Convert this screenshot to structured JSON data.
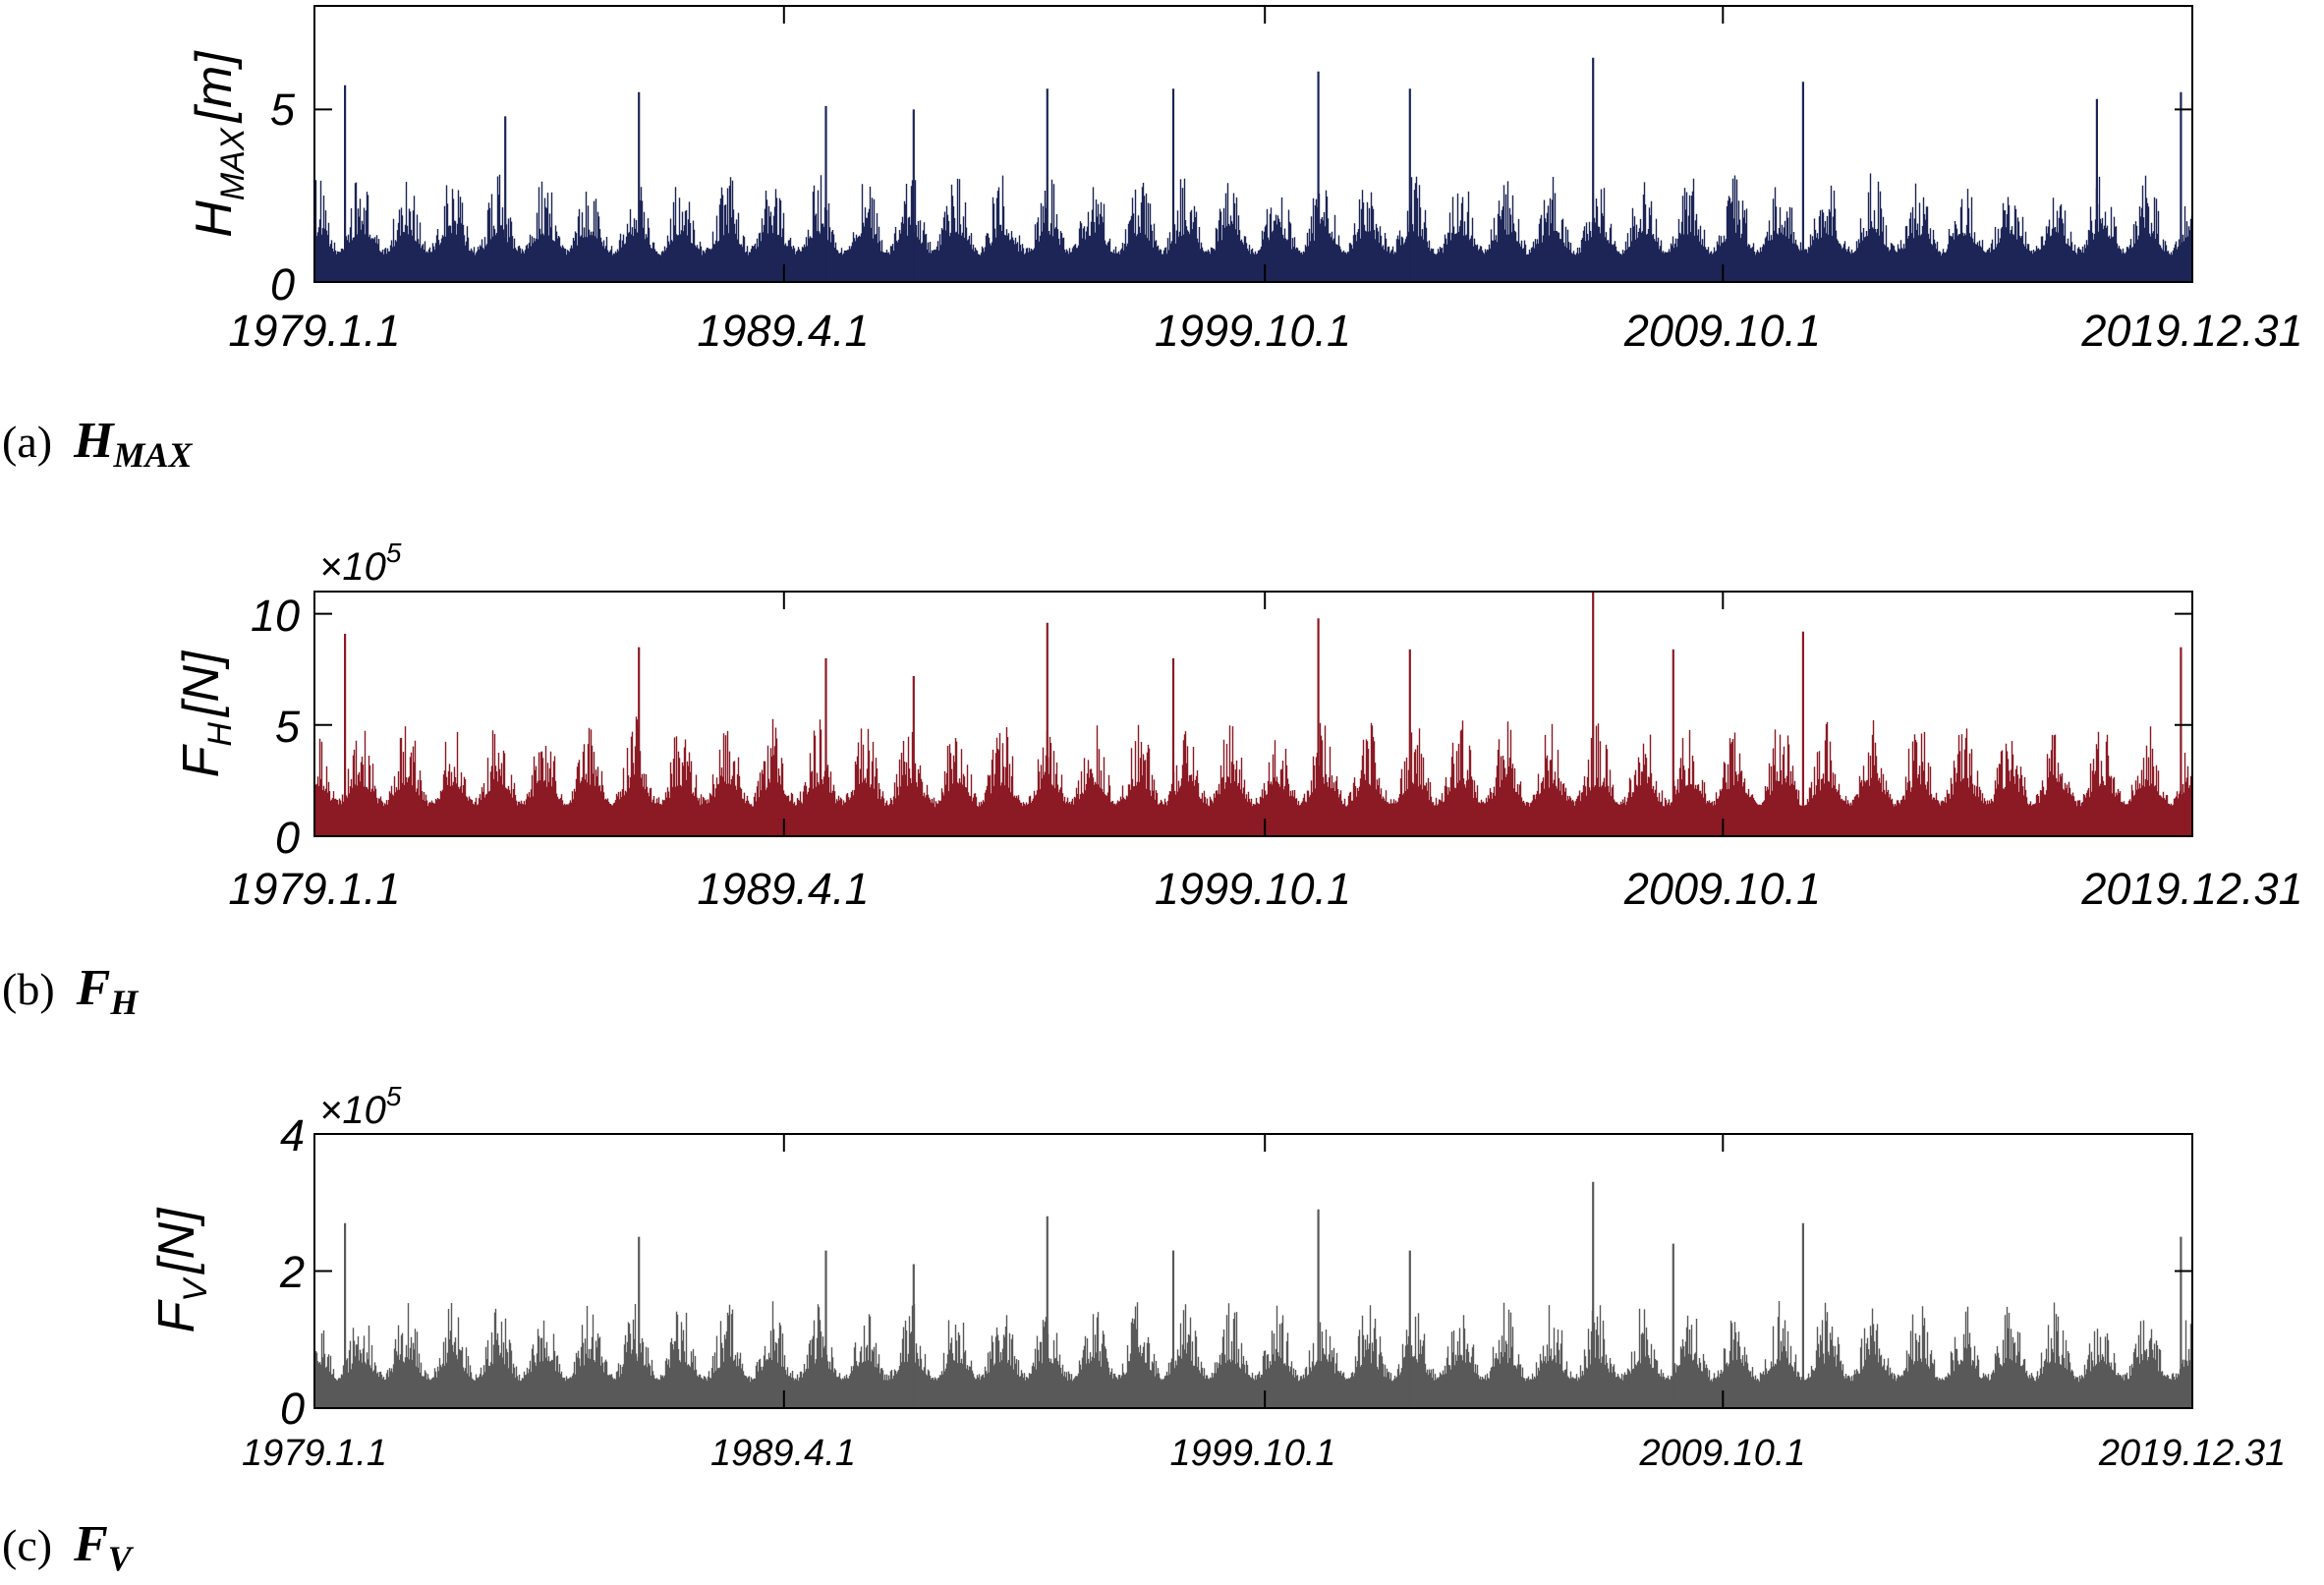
{
  "chart_data": [
    {
      "type": "bar",
      "ylabel": "H",
      "ylabel_subscript": "MAX",
      "ylabel_unit": "[m]",
      "yticks": [
        0,
        5
      ],
      "ylim": [
        0,
        8
      ],
      "x_tick_labels": [
        "1979.1.1",
        "1989.4.1",
        "1999.10.1",
        "2009.10.1",
        "2019.12.31"
      ],
      "x_range": [
        "1979.1.1",
        "2019.12.31"
      ],
      "series": [
        {
          "color": "#1c2556",
          "baseline": 0.7,
          "typical_peak": 2.5,
          "annual_peaks": [
            {
              "date": "1979.9",
              "value": 5.7
            },
            {
              "date": "1983.3",
              "value": 4.8
            },
            {
              "date": "1986.2",
              "value": 5.5
            },
            {
              "date": "1990.3",
              "value": 5.1
            },
            {
              "date": "1992.2",
              "value": 5.0
            },
            {
              "date": "1995.1",
              "value": 5.6
            },
            {
              "date": "1997.10",
              "value": 5.6
            },
            {
              "date": "2000.12",
              "value": 6.1
            },
            {
              "date": "2002.12",
              "value": 5.6
            },
            {
              "date": "2006.12",
              "value": 6.5
            },
            {
              "date": "2011.7",
              "value": 5.8
            },
            {
              "date": "2017.12",
              "value": 5.3
            },
            {
              "date": "2019.10",
              "value": 5.5
            }
          ]
        }
      ],
      "caption_label": "(a)",
      "caption_symbol": "H",
      "caption_subscript": "MAX"
    },
    {
      "type": "bar",
      "ylabel": "F",
      "ylabel_subscript": "H",
      "ylabel_unit": "[N]",
      "y_multiplier_base": "×10",
      "y_multiplier_exp": "5",
      "yticks": [
        0,
        5,
        10
      ],
      "ylim": [
        0,
        11
      ],
      "x_tick_labels": [
        "1979.1.1",
        "1989.4.1",
        "1999.10.1",
        "2009.10.1",
        "2019.12.31"
      ],
      "x_range": [
        "1979.1.1",
        "2019.12.31"
      ],
      "series": [
        {
          "color": "#8b1a24",
          "baseline": 1.2,
          "typical_peak": 4.0,
          "annual_peaks": [
            {
              "date": "1979.9",
              "value": 9.1
            },
            {
              "date": "1986.2",
              "value": 8.5
            },
            {
              "date": "1990.3",
              "value": 8.0
            },
            {
              "date": "1992.2",
              "value": 7.2
            },
            {
              "date": "1995.1",
              "value": 9.6
            },
            {
              "date": "1997.10",
              "value": 8.0
            },
            {
              "date": "2000.12",
              "value": 9.8
            },
            {
              "date": "2002.12",
              "value": 8.4
            },
            {
              "date": "2006.12",
              "value": 11.0
            },
            {
              "date": "2008.9",
              "value": 8.4
            },
            {
              "date": "2011.7",
              "value": 9.2
            },
            {
              "date": "2019.10",
              "value": 8.5
            }
          ]
        }
      ],
      "caption_label": "(b)",
      "caption_symbol": "F",
      "caption_subscript": "H"
    },
    {
      "type": "bar",
      "ylabel": "F",
      "ylabel_subscript": "V",
      "ylabel_unit": "[N]",
      "y_multiplier_base": "×10",
      "y_multiplier_exp": "5",
      "yticks": [
        0,
        2,
        4
      ],
      "ylim": [
        0,
        4
      ],
      "x_tick_labels": [
        "1979.1.1",
        "1989.4.1",
        "1999.10.1",
        "2009.10.1",
        "2019.12.31"
      ],
      "x_range": [
        "1979.1.1",
        "2019.12.31"
      ],
      "series": [
        {
          "color": "#595959",
          "baseline": 0.35,
          "typical_peak": 1.2,
          "annual_peaks": [
            {
              "date": "1979.9",
              "value": 2.7
            },
            {
              "date": "1986.2",
              "value": 2.5
            },
            {
              "date": "1990.3",
              "value": 2.3
            },
            {
              "date": "1992.2",
              "value": 2.1
            },
            {
              "date": "1995.1",
              "value": 2.8
            },
            {
              "date": "1997.10",
              "value": 2.3
            },
            {
              "date": "2000.12",
              "value": 2.9
            },
            {
              "date": "2002.12",
              "value": 2.3
            },
            {
              "date": "2006.12",
              "value": 3.3
            },
            {
              "date": "2008.9",
              "value": 2.4
            },
            {
              "date": "2011.7",
              "value": 2.7
            },
            {
              "date": "2019.10",
              "value": 2.5
            }
          ]
        }
      ],
      "caption_label": "(c)",
      "caption_symbol": "F",
      "caption_subscript": "V"
    }
  ]
}
